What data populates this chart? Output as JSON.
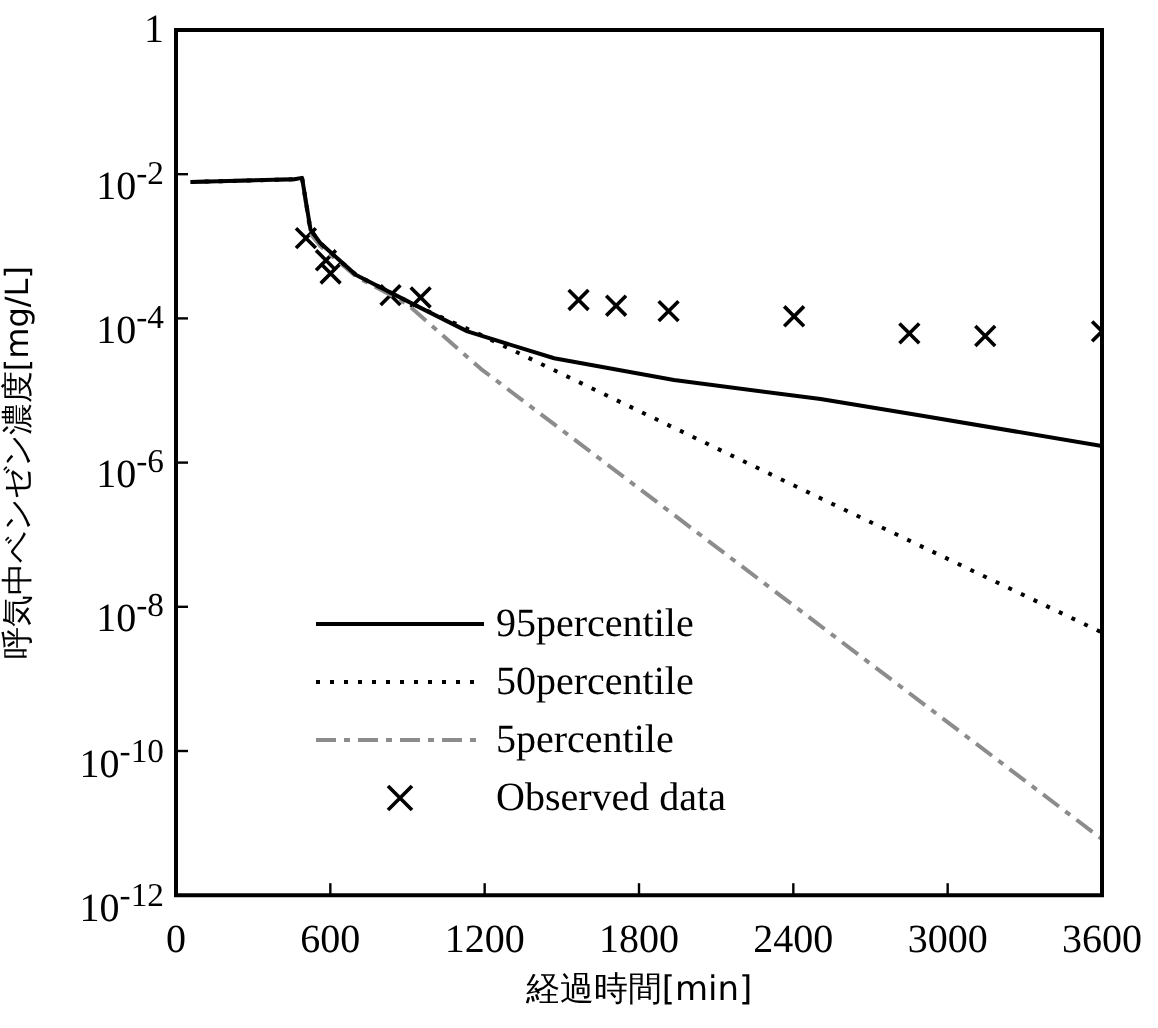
{
  "chart_data": {
    "type": "line",
    "xlabel": "経過時間[min]",
    "ylabel": "呼気中ベンゼン濃度[mg/L]",
    "log": "y",
    "xlim": [
      0,
      3600
    ],
    "xticks": [
      0,
      600,
      1200,
      1800,
      2400,
      3000,
      3600
    ],
    "ylim": [
      1e-12,
      1
    ],
    "yticks": [
      {
        "value": 1e-12,
        "label": "10$^{-12}$"
      },
      {
        "value": 1e-10,
        "label": "10$^{-10}$"
      },
      {
        "value": 1e-08,
        "label": "10$^{-8}$"
      },
      {
        "value": 1e-06,
        "label": "10$^{-6}$"
      },
      {
        "value": 0.0001,
        "label": "10$^{-4}$"
      },
      {
        "value": 0.01,
        "label": "10$^{-2}$"
      },
      1
    ],
    "grid": false,
    "legend": "bottom left",
    "series": [
      {
        "name": "95percentile",
        "color": "#000000",
        "line_style": "solid",
        "marker": "none",
        "x": [
          57,
          460,
          490,
          523,
          562,
          700,
          951,
          1133,
          1470,
          1936,
          2506,
          2895,
          3600
        ],
        "values": [
          0.0078,
          0.0085,
          0.0089,
          0.0017,
          0.0011,
          0.0004,
          0.00014,
          6.6e-05,
          2.8e-05,
          1.4e-05,
          7.6e-06,
          4.5e-06,
          1.7e-06
        ]
      },
      {
        "name": "50percentile",
        "color": "#000000",
        "line_style": "dotted",
        "marker": "none",
        "x": [
          57,
          460,
          490,
          523,
          562,
          700,
          951,
          1185,
          2506,
          3600
        ],
        "values": [
          0.0078,
          0.0085,
          0.0089,
          0.0017,
          0.0011,
          0.0004,
          0.00014,
          5.9e-05,
          3.2e-07,
          4.4e-09
        ]
      },
      {
        "name": "5percentile",
        "color": "#8c8c8c",
        "line_style": "dashed",
        "marker": "none",
        "x": [
          57,
          460,
          490,
          523,
          562,
          700,
          897,
          1185,
          1884,
          3600
        ],
        "values": [
          0.0078,
          0.0085,
          0.0089,
          0.0015,
          0.001,
          0.00038,
          0.00016,
          2e-05,
          2.6e-07,
          6e-12
        ]
      },
      {
        "name": "Observed data",
        "type": "scatter",
        "color": "#000000",
        "marker": "cross",
        "x": [
          505,
          583,
          601,
          834,
          951,
          1565,
          1711,
          1915,
          2403,
          2851,
          3146,
          3600
        ],
        "values": [
          0.0013,
          0.00064,
          0.00042,
          0.00021,
          0.000195,
          0.00018,
          0.00015,
          0.000126,
          0.000107,
          6.2e-05,
          5.7e-05,
          6.6e-05
        ]
      }
    ]
  }
}
